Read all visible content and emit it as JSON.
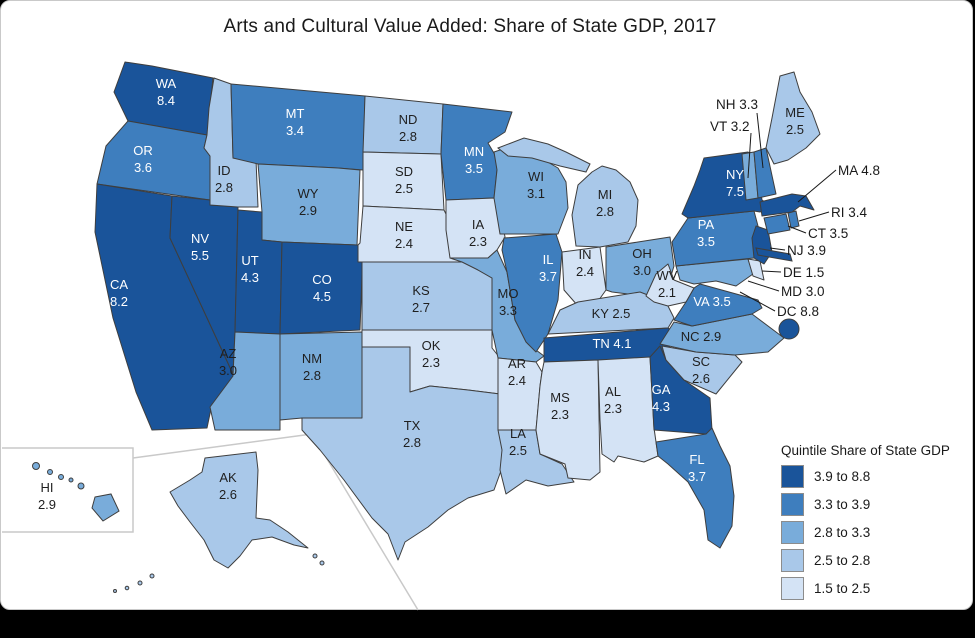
{
  "title": "Arts and Cultural Value Added: Share of State GDP, 2017",
  "legend": {
    "title": "Quintile Share of State GDP",
    "items": [
      {
        "label": "3.9 to 8.8",
        "color": "#1A549A"
      },
      {
        "label": "3.3 to 3.9",
        "color": "#3E7EBE"
      },
      {
        "label": "2.8 to 3.3",
        "color": "#79ACDA"
      },
      {
        "label": "2.5 to 2.8",
        "color": "#A9C8E9"
      },
      {
        "label": "1.5 to 2.5",
        "color": "#D4E3F5"
      }
    ]
  },
  "callouts": [
    {
      "abbr": "NH",
      "text": "NH 3.3"
    },
    {
      "abbr": "VT",
      "text": "VT 3.2"
    },
    {
      "abbr": "MA",
      "text": "MA 4.8"
    },
    {
      "abbr": "RI",
      "text": "RI 3.4"
    },
    {
      "abbr": "CT",
      "text": "CT 3.5"
    },
    {
      "abbr": "NJ",
      "text": "NJ 3.9"
    },
    {
      "abbr": "DE",
      "text": "DE 1.5"
    },
    {
      "abbr": "MD",
      "text": "MD 3.0"
    },
    {
      "abbr": "DC",
      "text": "DC 8.8"
    }
  ],
  "chart_data": {
    "type": "choropleth-map",
    "geography": "United States (states plus DC, AK and HI insets)",
    "title": "Arts and Cultural Value Added: Share of State GDP, 2017",
    "unit": "percent of state GDP",
    "legend_title": "Quintile Share of State GDP",
    "classes": [
      {
        "range": "3.9 to 8.8",
        "color": "#1A549A"
      },
      {
        "range": "3.3 to 3.9",
        "color": "#3E7EBE"
      },
      {
        "range": "2.8 to 3.3",
        "color": "#79ACDA"
      },
      {
        "range": "2.5 to 2.8",
        "color": "#A9C8E9"
      },
      {
        "range": "1.5 to 2.5",
        "color": "#D4E3F5"
      }
    ],
    "states": [
      {
        "abbr": "WA",
        "value": 8.4,
        "label": "8.4",
        "class": 0
      },
      {
        "abbr": "OR",
        "value": 3.6,
        "label": "3.6",
        "class": 1
      },
      {
        "abbr": "CA",
        "value": 8.2,
        "label": "8.2",
        "class": 0
      },
      {
        "abbr": "NV",
        "value": 5.5,
        "label": "5.5",
        "class": 0
      },
      {
        "abbr": "ID",
        "value": 2.8,
        "label": "2.8",
        "class": 3
      },
      {
        "abbr": "MT",
        "value": 3.4,
        "label": "3.4",
        "class": 1
      },
      {
        "abbr": "WY",
        "value": 2.9,
        "label": "2.9",
        "class": 2
      },
      {
        "abbr": "UT",
        "value": 4.3,
        "label": "4.3",
        "class": 0
      },
      {
        "abbr": "CO",
        "value": 4.5,
        "label": "4.5",
        "class": 0
      },
      {
        "abbr": "AZ",
        "value": 3.0,
        "label": "3.0",
        "class": 2
      },
      {
        "abbr": "NM",
        "value": 2.8,
        "label": "2.8",
        "class": 2
      },
      {
        "abbr": "ND",
        "value": 2.8,
        "label": "2.8",
        "class": 3
      },
      {
        "abbr": "SD",
        "value": 2.5,
        "label": "2.5",
        "class": 4
      },
      {
        "abbr": "NE",
        "value": 2.4,
        "label": "2.4",
        "class": 4
      },
      {
        "abbr": "KS",
        "value": 2.7,
        "label": "2.7",
        "class": 3
      },
      {
        "abbr": "OK",
        "value": 2.3,
        "label": "2.3",
        "class": 4
      },
      {
        "abbr": "TX",
        "value": 2.8,
        "label": "2.8",
        "class": 3
      },
      {
        "abbr": "MN",
        "value": 3.5,
        "label": "3.5",
        "class": 1
      },
      {
        "abbr": "IA",
        "value": 2.3,
        "label": "2.3",
        "class": 4
      },
      {
        "abbr": "MO",
        "value": 3.3,
        "label": "3.3",
        "class": 2
      },
      {
        "abbr": "AR",
        "value": 2.4,
        "label": "2.4",
        "class": 4
      },
      {
        "abbr": "LA",
        "value": 2.5,
        "label": "2.5",
        "class": 3
      },
      {
        "abbr": "WI",
        "value": 3.1,
        "label": "3.1",
        "class": 2
      },
      {
        "abbr": "IL",
        "value": 3.7,
        "label": "3.7",
        "class": 1
      },
      {
        "abbr": "IN",
        "value": 2.4,
        "label": "2.4",
        "class": 4
      },
      {
        "abbr": "MI",
        "value": 2.8,
        "label": "2.8",
        "class": 3
      },
      {
        "abbr": "OH",
        "value": 3.0,
        "label": "3.0",
        "class": 2
      },
      {
        "abbr": "KY",
        "value": 2.5,
        "label": "2.5",
        "class": 3
      },
      {
        "abbr": "TN",
        "value": 4.1,
        "label": "4.1",
        "class": 0
      },
      {
        "abbr": "MS",
        "value": 2.3,
        "label": "2.3",
        "class": 4
      },
      {
        "abbr": "AL",
        "value": 2.3,
        "label": "2.3",
        "class": 4
      },
      {
        "abbr": "GA",
        "value": 4.3,
        "label": "4.3",
        "class": 0
      },
      {
        "abbr": "FL",
        "value": 3.7,
        "label": "3.7",
        "class": 1
      },
      {
        "abbr": "SC",
        "value": 2.6,
        "label": "2.6",
        "class": 3
      },
      {
        "abbr": "NC",
        "value": 2.9,
        "label": "2.9",
        "class": 2
      },
      {
        "abbr": "VA",
        "value": 3.5,
        "label": "3.5",
        "class": 1
      },
      {
        "abbr": "WV",
        "value": 2.1,
        "label": "2.1",
        "class": 4
      },
      {
        "abbr": "MD",
        "value": 3.0,
        "label": "3.0",
        "class": 2
      },
      {
        "abbr": "DE",
        "value": 1.5,
        "label": "1.5",
        "class": 4
      },
      {
        "abbr": "PA",
        "value": 3.5,
        "label": "3.5",
        "class": 1
      },
      {
        "abbr": "NJ",
        "value": 3.9,
        "label": "3.9",
        "class": 0
      },
      {
        "abbr": "NY",
        "value": 7.5,
        "label": "7.5",
        "class": 0
      },
      {
        "abbr": "CT",
        "value": 3.5,
        "label": "3.5",
        "class": 1
      },
      {
        "abbr": "RI",
        "value": 3.4,
        "label": "3.4",
        "class": 1
      },
      {
        "abbr": "MA",
        "value": 4.8,
        "label": "4.8",
        "class": 0
      },
      {
        "abbr": "VT",
        "value": 3.2,
        "label": "3.2",
        "class": 2
      },
      {
        "abbr": "NH",
        "value": 3.3,
        "label": "3.3",
        "class": 1
      },
      {
        "abbr": "ME",
        "value": 2.5,
        "label": "2.5",
        "class": 3
      },
      {
        "abbr": "AK",
        "value": 2.6,
        "label": "2.6",
        "class": 3
      },
      {
        "abbr": "HI",
        "value": 2.9,
        "label": "2.9",
        "class": 2
      },
      {
        "abbr": "DC",
        "value": 8.8,
        "label": "8.8",
        "class": 0
      }
    ]
  }
}
